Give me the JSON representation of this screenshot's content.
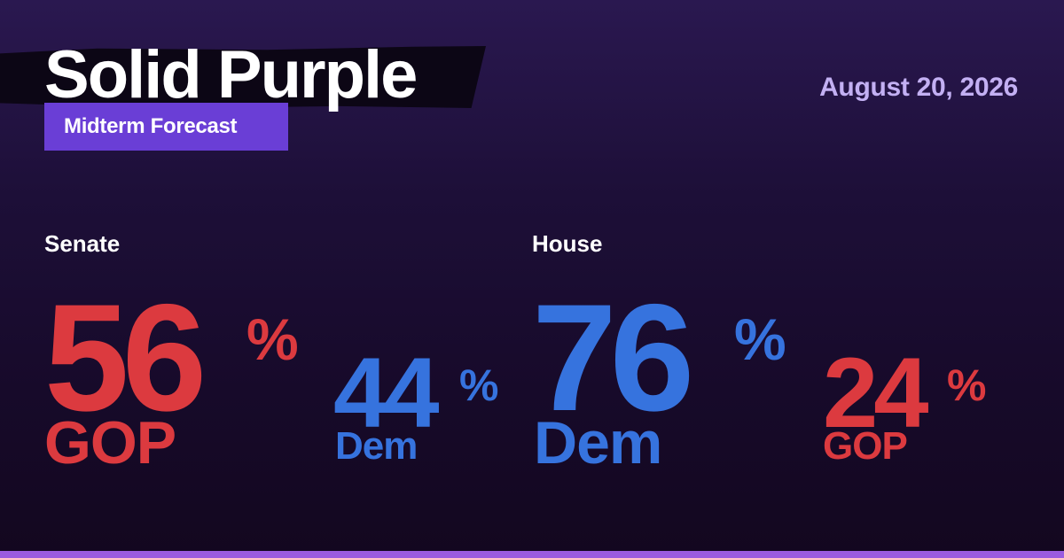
{
  "header": {
    "title": "Solid Purple",
    "subtitle": "Midterm Forecast",
    "date": "August 20, 2026"
  },
  "senate": {
    "label": "Senate",
    "leader": {
      "value": "56",
      "pct_sign": "%",
      "party": "GOP"
    },
    "trailer": {
      "value": "44",
      "pct_sign": "%",
      "party": "Dem"
    }
  },
  "house": {
    "label": "House",
    "leader": {
      "value": "76",
      "pct_sign": "%",
      "party": "Dem"
    },
    "trailer": {
      "value": "24",
      "pct_sign": "%",
      "party": "GOP"
    }
  },
  "colors": {
    "gop": "#dc3a3f",
    "dem": "#3673de",
    "accent": "#6a3ed6",
    "date": "#c3b0f3",
    "bottom_bar": "#9b5be0"
  }
}
